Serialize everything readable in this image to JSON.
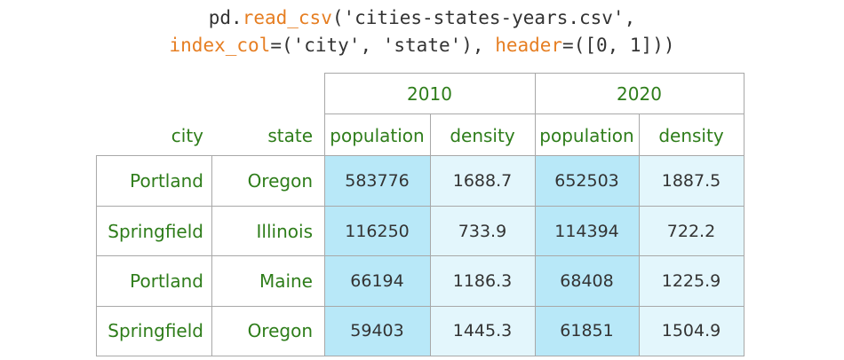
{
  "code": {
    "line1_prefix": "pd.",
    "line1_fn": "read_csv",
    "line1_rest": "('cities-states-years.csv',",
    "line2_kw1": "index_col",
    "line2_mid": "=('city', 'state'), ",
    "line2_kw2": "header",
    "line2_end": "=([0, 1]))"
  },
  "table": {
    "years": [
      "2010",
      "2020"
    ],
    "subheaders": [
      "population",
      "density",
      "population",
      "density"
    ],
    "index_names": [
      "city",
      "state"
    ],
    "rows": [
      {
        "city": "Portland",
        "state": "Oregon",
        "values": [
          "583776",
          "1688.7",
          "652503",
          "1887.5"
        ]
      },
      {
        "city": "Springfield",
        "state": "Illinois",
        "values": [
          "116250",
          "733.9",
          "114394",
          "722.2"
        ]
      },
      {
        "city": "Portland",
        "state": "Maine",
        "values": [
          "66194",
          "1186.3",
          "68408",
          "1225.9"
        ]
      },
      {
        "city": "Springfield",
        "state": "Oregon",
        "values": [
          "59403",
          "1445.3",
          "61851",
          "1504.9"
        ]
      }
    ]
  },
  "colors": {
    "header_text": "#2e7d1a",
    "population_fill": "#b8e8f8",
    "density_fill": "#e3f6fc",
    "code_keyword": "#e67e22"
  }
}
